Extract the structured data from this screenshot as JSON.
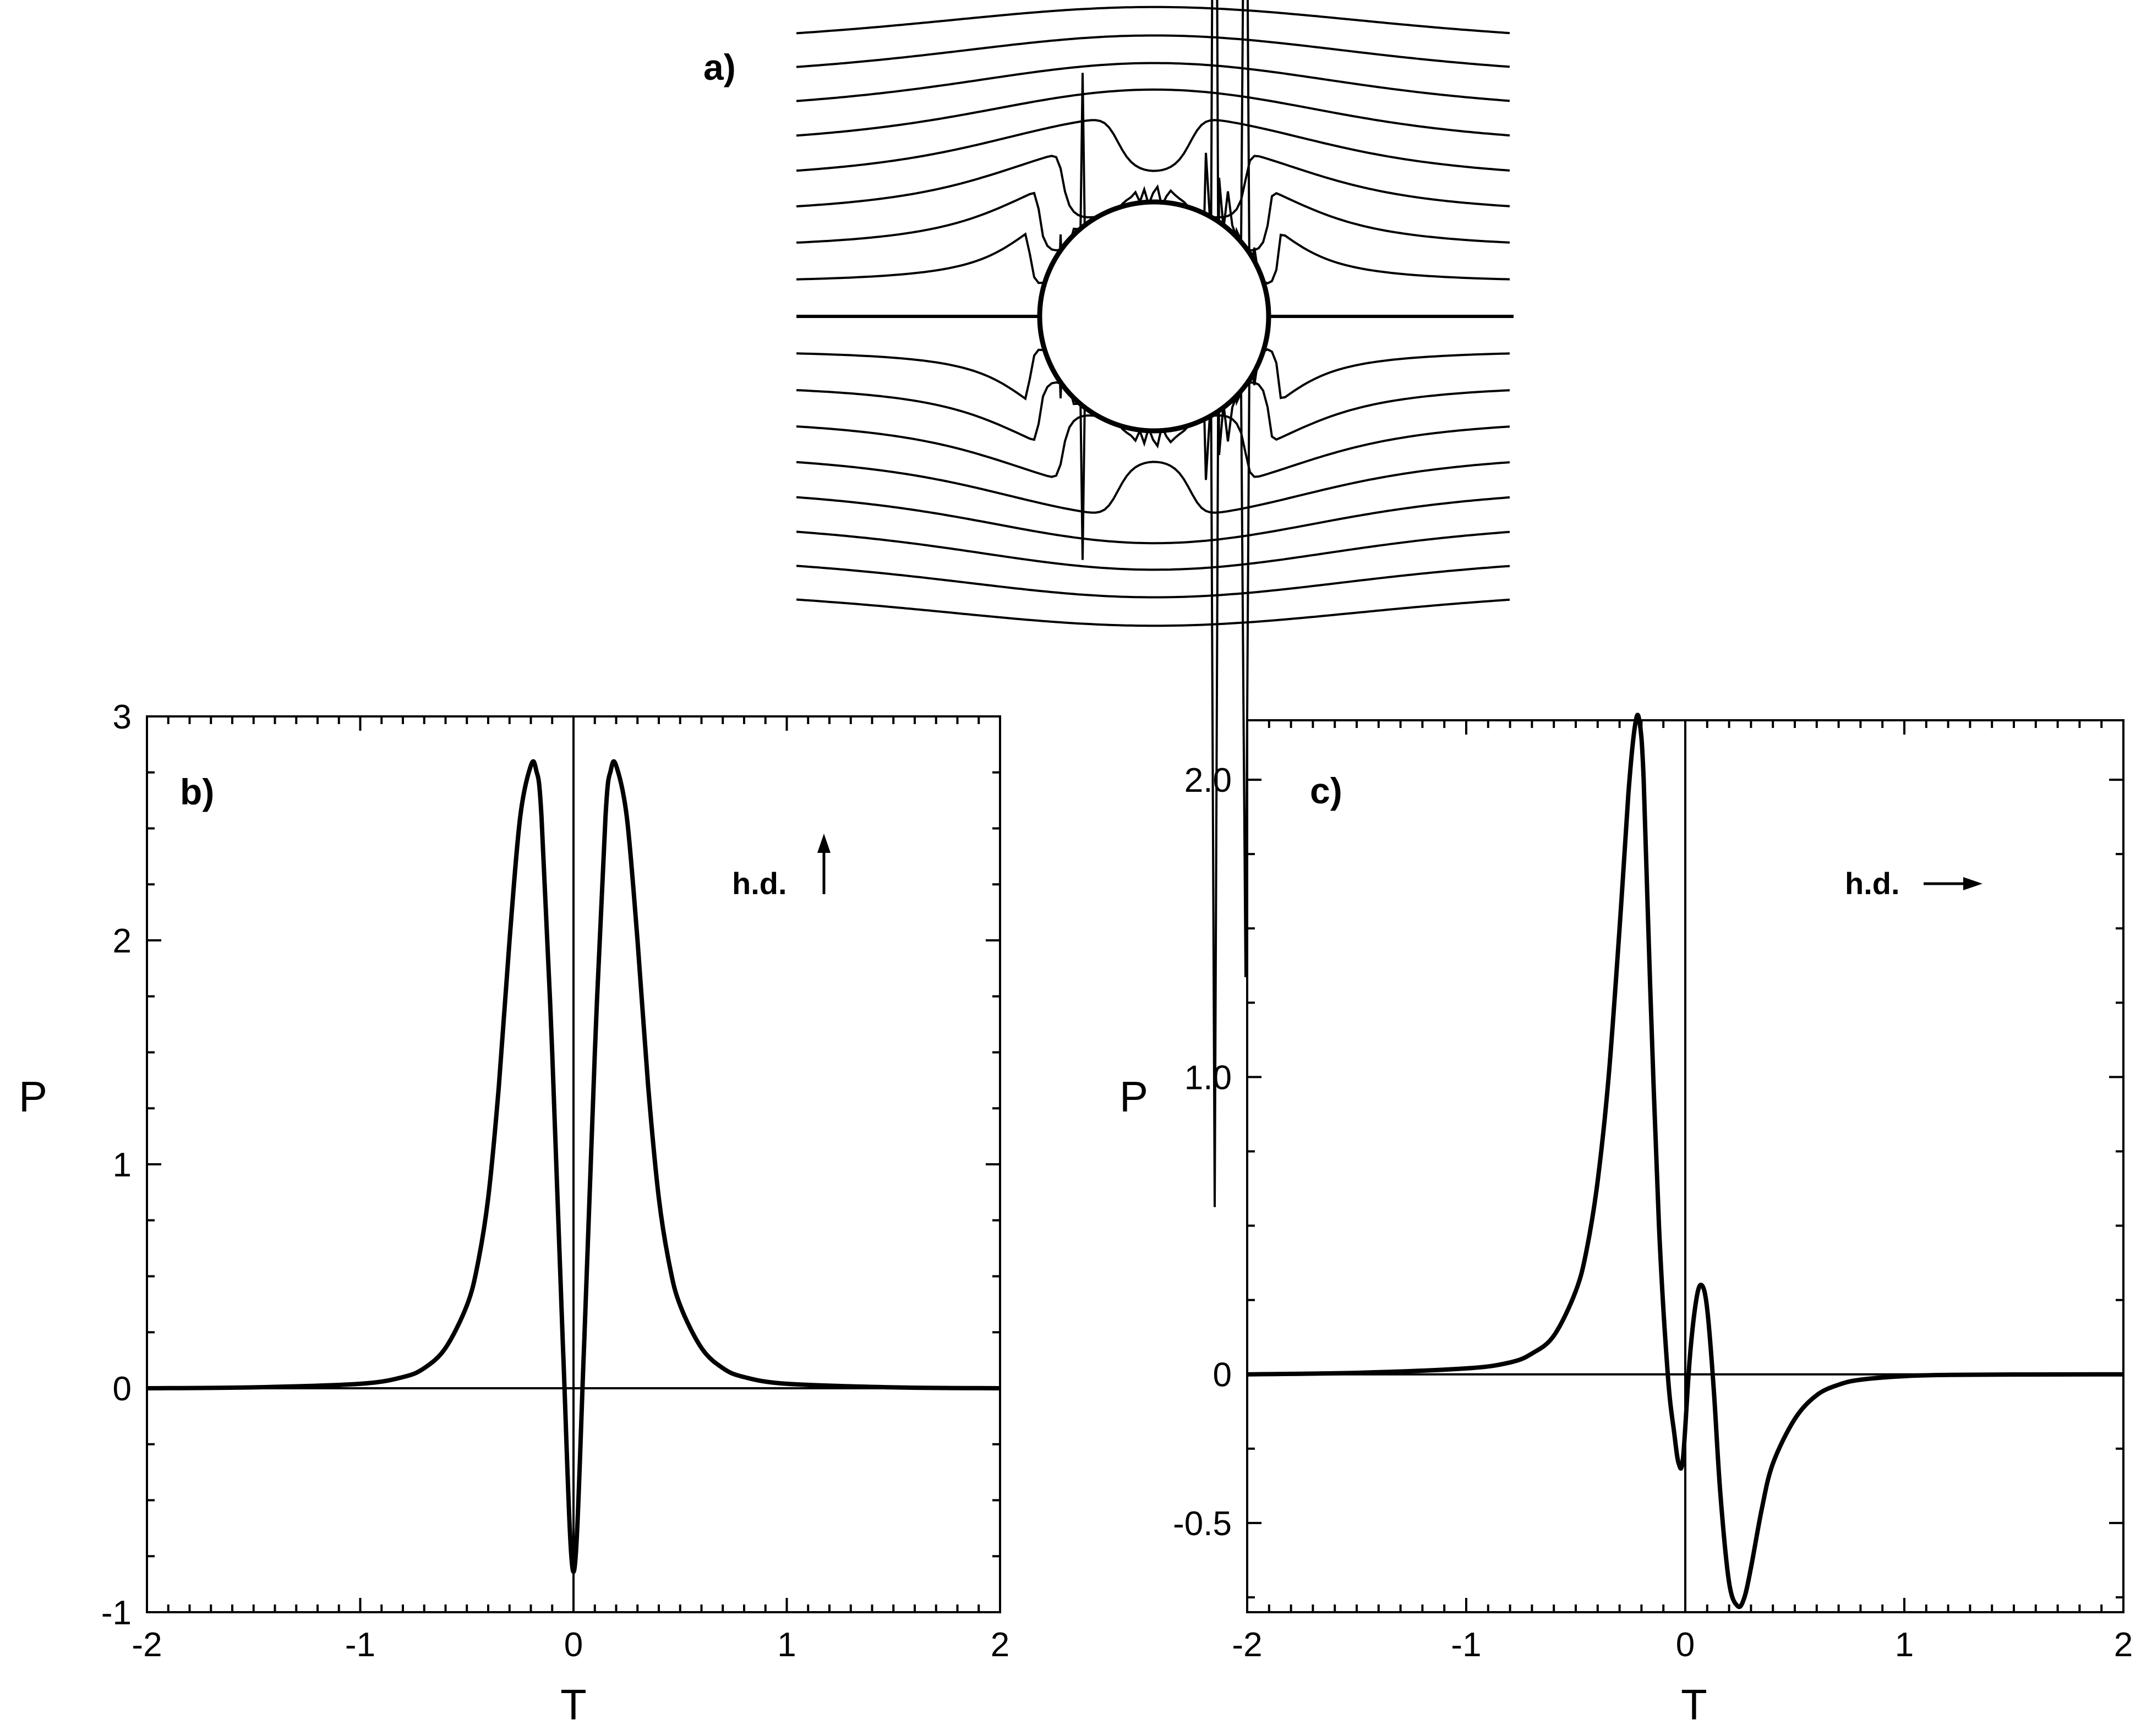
{
  "panels": {
    "a": {
      "label": "a)"
    }
  },
  "chart_data": [
    {
      "panel": "b",
      "label": "b)",
      "type": "line",
      "xlabel": "T",
      "ylabel": "P",
      "xlim": [
        -2,
        2
      ],
      "ylim": [
        -1,
        3
      ],
      "xticks": [
        -2,
        -1,
        0,
        1,
        2
      ],
      "xtick_labels": [
        "-2",
        "-1",
        "0",
        "1",
        "2"
      ],
      "yticks": [
        -1,
        0,
        1,
        2,
        3
      ],
      "ytick_labels": [
        "-1",
        "0",
        "1",
        "2",
        "3"
      ],
      "annotation": {
        "text": "h.d.",
        "arrow": "up"
      },
      "grid": false,
      "reference_lines": {
        "x": 0,
        "y": 0
      },
      "series": [
        {
          "x": [
            -2,
            -1.5,
            -1.0,
            -0.8,
            -0.7,
            -0.6,
            -0.5,
            -0.45,
            -0.4,
            -0.35,
            -0.3,
            -0.25,
            -0.2,
            -0.175,
            -0.15,
            -0.1,
            -0.05,
            0,
            0.05,
            0.1,
            0.15,
            0.175,
            0.2,
            0.25,
            0.3,
            0.35,
            0.4,
            0.45,
            0.5,
            0.6,
            0.7,
            0.8,
            1.0,
            1.5,
            2
          ],
          "y": [
            0.0,
            0.004,
            0.02,
            0.05,
            0.09,
            0.18,
            0.37,
            0.55,
            0.85,
            1.35,
            2.0,
            2.55,
            2.78,
            2.76,
            2.55,
            1.5,
            0.2,
            -0.82,
            0.2,
            1.5,
            2.55,
            2.76,
            2.78,
            2.55,
            2.0,
            1.35,
            0.85,
            0.55,
            0.37,
            0.18,
            0.09,
            0.05,
            0.02,
            0.004,
            0.0
          ]
        }
      ]
    },
    {
      "panel": "c",
      "label": "c)",
      "type": "line",
      "xlabel": "T",
      "ylabel": "P",
      "xlim": [
        -2,
        2
      ],
      "ylim": [
        -0.8,
        2.2
      ],
      "xticks": [
        -2,
        -1,
        0,
        1,
        2
      ],
      "xtick_labels": [
        "-2",
        "-1",
        "0",
        "1",
        "2"
      ],
      "yticks": [
        -0.5,
        0,
        1.0,
        2.0
      ],
      "ytick_labels": [
        "-0.5",
        "0",
        "1.0",
        "2.0"
      ],
      "annotation": {
        "text": "h.d.",
        "arrow": "right"
      },
      "grid": false,
      "reference_lines": {
        "x": 0,
        "y": 0
      },
      "series": [
        {
          "x": [
            -2,
            -1.5,
            -1.0,
            -0.8,
            -0.7,
            -0.6,
            -0.5,
            -0.45,
            -0.4,
            -0.35,
            -0.3,
            -0.26,
            -0.23,
            -0.21,
            -0.19,
            -0.16,
            -0.12,
            -0.08,
            -0.05,
            -0.03,
            -0.01,
            0.02,
            0.05,
            0.075,
            0.1,
            0.13,
            0.16,
            0.2,
            0.24,
            0.27,
            0.3,
            0.35,
            0.4,
            0.5,
            0.6,
            0.7,
            0.8,
            1.0,
            1.2,
            1.5,
            2
          ],
          "y": [
            0.0,
            0.005,
            0.02,
            0.04,
            0.07,
            0.13,
            0.28,
            0.42,
            0.65,
            1.0,
            1.5,
            1.95,
            2.18,
            2.2,
            2.0,
            1.3,
            0.5,
            0.0,
            -0.2,
            -0.3,
            -0.28,
            0.05,
            0.25,
            0.3,
            0.22,
            -0.05,
            -0.4,
            -0.7,
            -0.78,
            -0.75,
            -0.65,
            -0.45,
            -0.3,
            -0.15,
            -0.07,
            -0.035,
            -0.018,
            -0.006,
            -0.002,
            -0.0005,
            0.0
          ]
        }
      ]
    }
  ]
}
